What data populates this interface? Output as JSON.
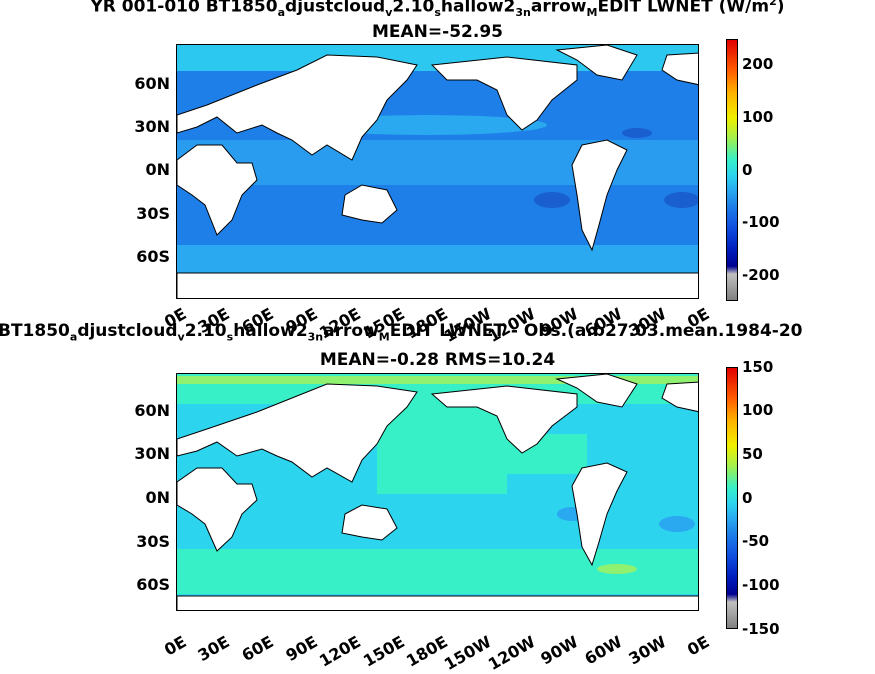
{
  "panel1": {
    "title_line1_parts": [
      "YR 001-010 BT1850",
      "a",
      "djustcloud",
      "v",
      "2.10",
      "s",
      "hallow2",
      "3n",
      "arrow",
      "M",
      "EDIT  LWNET (W/m",
      "2",
      ")"
    ],
    "title_line2": "MEAN=-52.95",
    "lat_labels": [
      "60N",
      "30N",
      "0N",
      "30S",
      "60S"
    ],
    "lon_labels": [
      "0E",
      "30E",
      "60E",
      "90E",
      "120E",
      "150E",
      "180E",
      "150W",
      "120W",
      "90W",
      "60W",
      "30W",
      "0E"
    ],
    "cbar_ticks": [
      "200",
      "100",
      "0",
      "-100",
      "-200"
    ]
  },
  "panel2": {
    "title_line1_parts": [
      "BT1850",
      "a",
      "djustcloud",
      "v",
      "2.10",
      "s",
      "hallow2",
      "3n",
      "arrow",
      "M",
      "EDIT LWNET - Obs.(a.b27.03.mean.1984-20"
    ],
    "title_line2": "MEAN=-0.28 RMS=10.24",
    "lat_labels": [
      "60N",
      "30N",
      "0N",
      "30S",
      "60S"
    ],
    "lon_labels": [
      "0E",
      "30E",
      "60E",
      "90E",
      "120E",
      "150E",
      "180E",
      "150W",
      "120W",
      "90W",
      "60W",
      "30W",
      "0E"
    ],
    "cbar_ticks": [
      "150",
      "100",
      "50",
      "0",
      "-50",
      "-100",
      "-150"
    ]
  },
  "colors": {
    "ocean_blue": "#1e7fe8",
    "ocean_mid": "#2aa8f0",
    "ocean_cyan": "#2dd4ee",
    "ocean_green": "#38f0c8",
    "land": "#ffffff"
  }
}
